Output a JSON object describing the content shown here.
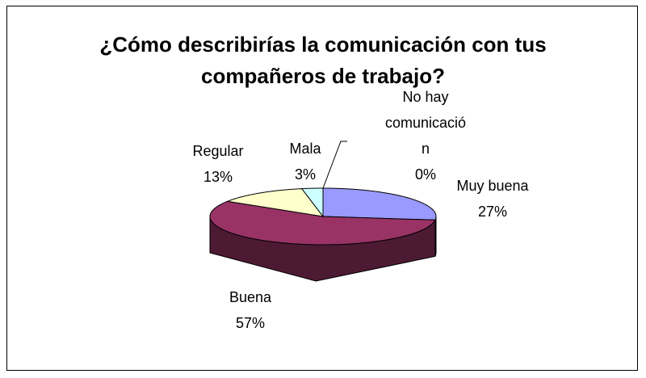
{
  "chart_data": {
    "type": "pie3d",
    "title": "¿Cómo describirías la comunicación con tus compañeros de trabajo?",
    "categories": [
      "Muy buena",
      "Buena",
      "Regular",
      "Mala",
      "No hay comunicación"
    ],
    "values": [
      27,
      57,
      13,
      3,
      0
    ],
    "value_labels": [
      "27%",
      "57%",
      "13%",
      "3%",
      "0%"
    ],
    "colors": [
      "#9999ff",
      "#993366",
      "#ffffcc",
      "#ccffff",
      "#660066"
    ]
  }
}
